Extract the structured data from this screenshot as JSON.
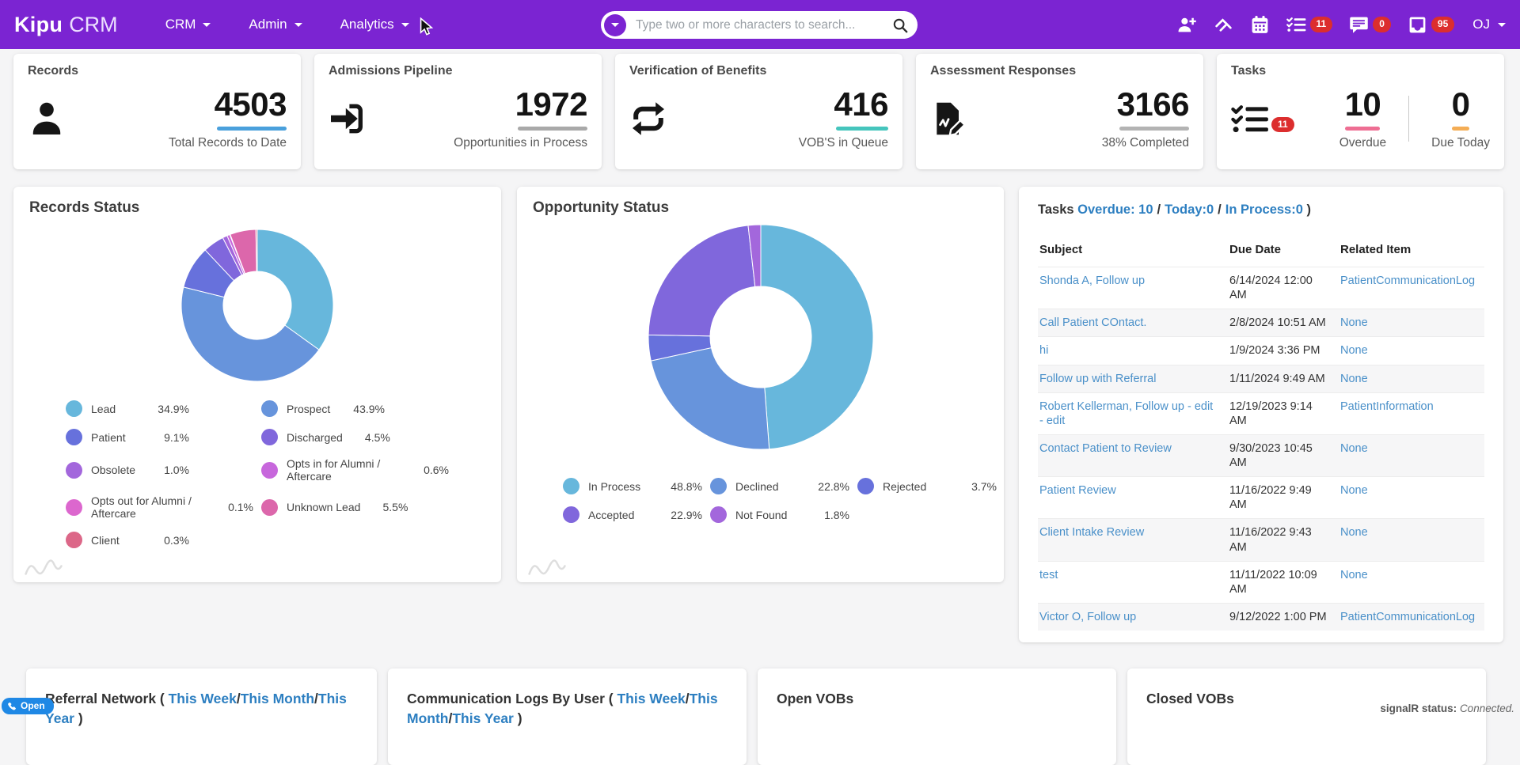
{
  "navbar": {
    "brand": {
      "primary": "Kipu",
      "secondary": "CRM"
    },
    "menus": [
      {
        "label": "CRM"
      },
      {
        "label": "Admin"
      },
      {
        "label": "Analytics"
      }
    ],
    "search": {
      "placeholder": "Type two or more characters to search..."
    },
    "actions": [
      {
        "icon": "add-user-icon"
      },
      {
        "icon": "hands-icon"
      },
      {
        "icon": "calendar-icon"
      },
      {
        "icon": "checklist-icon",
        "badge": "11"
      },
      {
        "icon": "chat-icon",
        "badge": "0"
      },
      {
        "icon": "inbox-icon",
        "badge": "95"
      }
    ],
    "user": {
      "initials": "OJ"
    },
    "colors": {
      "background": "#7b24d2",
      "badge": "#dc2e2e"
    }
  },
  "stat_cards": [
    {
      "title": "Records",
      "icon": "person-icon",
      "metrics": [
        {
          "value": "4503",
          "label": "Total Records to Date",
          "bar_color": "#4aa0dc"
        }
      ]
    },
    {
      "title": "Admissions Pipeline",
      "icon": "sign-in-icon",
      "metrics": [
        {
          "value": "1972",
          "label": "Opportunities in Process",
          "bar_color": "#a9a9a9"
        }
      ]
    },
    {
      "title": "Verification of Benefits",
      "icon": "repeat-icon",
      "metrics": [
        {
          "value": "416",
          "label": "VOB'S in Queue",
          "bar_color": "#45c5bd"
        }
      ]
    },
    {
      "title": "Assessment Responses",
      "icon": "assessment-icon",
      "metrics": [
        {
          "value": "3166",
          "label": "38% Completed",
          "bar_color": "#b3b3b3"
        }
      ]
    },
    {
      "title": "Tasks",
      "icon": "checklist-icon",
      "badge": "11",
      "metrics": [
        {
          "value": "10",
          "label": "Overdue",
          "bar_color": "#ee6e93"
        },
        {
          "value": "0",
          "label": "Due Today",
          "bar_color": "#f4ad55"
        }
      ]
    }
  ],
  "chart_data": [
    {
      "type": "pie",
      "title": "Records Status",
      "legend_columns": 2,
      "legend_position": "bottom",
      "segments": [
        {
          "label": "Lead",
          "value": 34.9,
          "color": "#67b7dc"
        },
        {
          "label": "Prospect",
          "value": 43.9,
          "color": "#6794dc"
        },
        {
          "label": "Patient",
          "value": 9.1,
          "color": "#6771dc"
        },
        {
          "label": "Discharged",
          "value": 4.5,
          "color": "#8067dc"
        },
        {
          "label": "Obsolete",
          "value": 1.0,
          "color": "#a367dc"
        },
        {
          "label": "Opts in for Alumni / Aftercare",
          "value": 0.6,
          "color": "#c767dc"
        },
        {
          "label": "Opts out for Alumni / Aftercare",
          "value": 0.1,
          "color": "#dc67ce"
        },
        {
          "label": "Unknown Lead",
          "value": 5.5,
          "color": "#dc67ab"
        },
        {
          "label": "Client",
          "value": 0.3,
          "color": "#dc6788"
        }
      ]
    },
    {
      "type": "pie",
      "title": "Opportunity Status",
      "legend_columns": 3,
      "legend_position": "bottom",
      "segments": [
        {
          "label": "In Process",
          "value": 48.8,
          "color": "#67b7dc"
        },
        {
          "label": "Declined",
          "value": 22.8,
          "color": "#6794dc"
        },
        {
          "label": "Rejected",
          "value": 3.7,
          "color": "#6771dc"
        },
        {
          "label": "Accepted",
          "value": 22.9,
          "color": "#8067dc"
        },
        {
          "label": "Not Found",
          "value": 1.8,
          "color": "#a367dc"
        }
      ]
    }
  ],
  "tasks_panel": {
    "title_prefix": "Tasks (",
    "links": [
      "Overdue: 10",
      "Today:0",
      "In Process:0"
    ],
    "separator": "/",
    "title_suffix": ")",
    "columns": [
      "Subject",
      "Due Date",
      "Related Item"
    ],
    "rows": [
      {
        "subject": "Shonda A, Follow up",
        "due_date": "6/14/2024 12:00 AM",
        "related_item": "PatientCommunicationLog"
      },
      {
        "subject": "Call Patient COntact.",
        "due_date": "2/8/2024 10:51 AM",
        "related_item": "None"
      },
      {
        "subject": "hi",
        "due_date": "1/9/2024 3:36 PM",
        "related_item": "None"
      },
      {
        "subject": "Follow up with Referral",
        "due_date": "1/11/2024 9:49 AM",
        "related_item": "None"
      },
      {
        "subject": "Robert Kellerman, Follow up - edit - edit",
        "due_date": "12/19/2023 9:14 AM",
        "related_item": "PatientInformation"
      },
      {
        "subject": "Contact Patient to Review",
        "due_date": "9/30/2023 10:45 AM",
        "related_item": "None"
      },
      {
        "subject": "Patient Review",
        "due_date": "11/16/2022 9:49 AM",
        "related_item": "None"
      },
      {
        "subject": "Client Intake Review",
        "due_date": "11/16/2022 9:43 AM",
        "related_item": "None"
      },
      {
        "subject": "test",
        "due_date": "11/11/2022 10:09 AM",
        "related_item": "None"
      },
      {
        "subject": "Victor O, Follow up",
        "due_date": "9/12/2022 1:00 PM",
        "related_item": "PatientCommunicationLog"
      }
    ]
  },
  "bottom_cards": [
    {
      "title_prefix": "Referral Network (",
      "links": [
        "This Week",
        "This Month",
        "This Year"
      ],
      "separator": "/",
      "title_suffix": ")"
    },
    {
      "title_prefix": "Communication Logs By User (",
      "links": [
        "This Week",
        "This Month",
        "This Year"
      ],
      "separator": "/",
      "title_suffix": ")"
    },
    {
      "title_prefix": "Open VOBs",
      "links": [],
      "separator": "",
      "title_suffix": ""
    },
    {
      "title_prefix": "Closed VOBs",
      "links": [],
      "separator": "",
      "title_suffix": ""
    }
  ],
  "footer": {
    "open_button_label": "Open",
    "signalr_label": "signalR status:",
    "signalr_value": "Connected."
  }
}
